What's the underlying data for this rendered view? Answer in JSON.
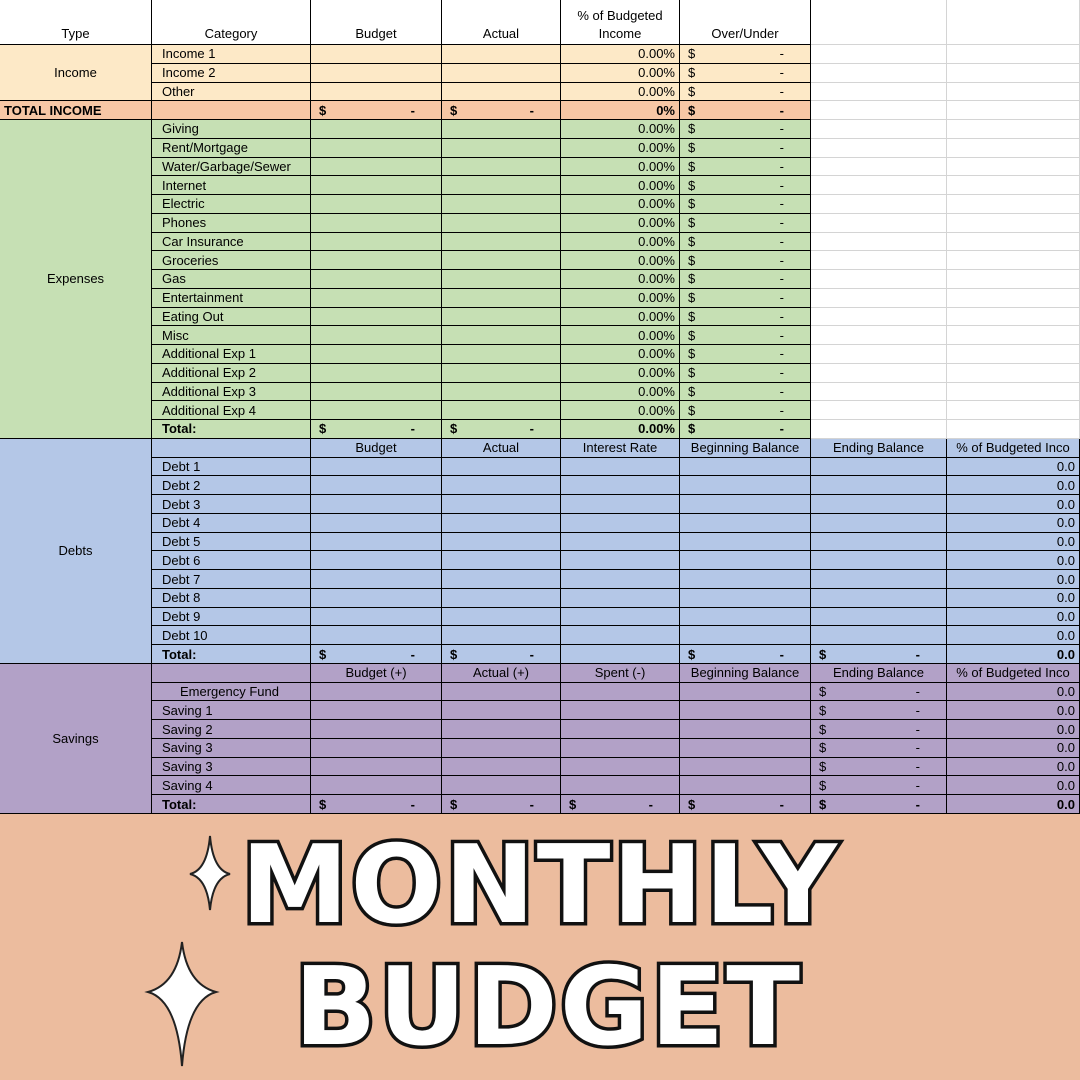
{
  "header": [
    "Type",
    "Category",
    "Budget",
    "Actual",
    "% of Budgeted Income",
    "Over/Under"
  ],
  "sections": [
    {
      "label": "Income",
      "color": "#fde9c7",
      "full_width": false,
      "rows": [
        {
          "kind": "data",
          "cells": [
            "Income 1",
            null,
            null,
            "0.00%",
            {
              "left": "$",
              "right": "-"
            },
            null,
            null
          ]
        },
        {
          "kind": "data",
          "cells": [
            "Income 2",
            null,
            null,
            "0.00%",
            {
              "left": "$",
              "right": "-"
            },
            null,
            null
          ]
        },
        {
          "kind": "data",
          "cells": [
            "Other",
            null,
            null,
            "0.00%",
            {
              "left": "$",
              "right": "-"
            },
            null,
            null
          ]
        }
      ]
    },
    {
      "label": "TOTAL INCOME",
      "color": "#f7c7a5",
      "full_width": false,
      "rows": [
        {
          "kind": "total",
          "cells": [
            null,
            {
              "left": "$",
              "right": "-"
            },
            {
              "left": "$",
              "right": "-"
            },
            "0%",
            {
              "left": "$",
              "right": "-"
            },
            null,
            null
          ]
        }
      ]
    },
    {
      "label": "Expenses",
      "color": "#c6e0b4",
      "full_width": false,
      "rows": [
        {
          "kind": "data",
          "cells": [
            "Giving",
            null,
            null,
            "0.00%",
            {
              "left": "$",
              "right": "-"
            },
            null,
            null
          ]
        },
        {
          "kind": "data",
          "cells": [
            "Rent/Mortgage",
            null,
            null,
            "0.00%",
            {
              "left": "$",
              "right": "-"
            },
            null,
            null
          ]
        },
        {
          "kind": "data",
          "cells": [
            "Water/Garbage/Sewer",
            null,
            null,
            "0.00%",
            {
              "left": "$",
              "right": "-"
            },
            null,
            null
          ]
        },
        {
          "kind": "data",
          "cells": [
            "Internet",
            null,
            null,
            "0.00%",
            {
              "left": "$",
              "right": "-"
            },
            null,
            null
          ]
        },
        {
          "kind": "data",
          "cells": [
            "Electric",
            null,
            null,
            "0.00%",
            {
              "left": "$",
              "right": "-"
            },
            null,
            null
          ]
        },
        {
          "kind": "data",
          "cells": [
            "Phones",
            null,
            null,
            "0.00%",
            {
              "left": "$",
              "right": "-"
            },
            null,
            null
          ]
        },
        {
          "kind": "data",
          "cells": [
            "Car Insurance",
            null,
            null,
            "0.00%",
            {
              "left": "$",
              "right": "-"
            },
            null,
            null
          ]
        },
        {
          "kind": "data",
          "cells": [
            "Groceries",
            null,
            null,
            "0.00%",
            {
              "left": "$",
              "right": "-"
            },
            null,
            null
          ]
        },
        {
          "kind": "data",
          "cells": [
            "Gas",
            null,
            null,
            "0.00%",
            {
              "left": "$",
              "right": "-"
            },
            null,
            null
          ]
        },
        {
          "kind": "data",
          "cells": [
            "Entertainment",
            null,
            null,
            "0.00%",
            {
              "left": "$",
              "right": "-"
            },
            null,
            null
          ]
        },
        {
          "kind": "data",
          "cells": [
            "Eating Out",
            null,
            null,
            "0.00%",
            {
              "left": "$",
              "right": "-"
            },
            null,
            null
          ]
        },
        {
          "kind": "data",
          "cells": [
            "Misc",
            null,
            null,
            "0.00%",
            {
              "left": "$",
              "right": "-"
            },
            null,
            null
          ]
        },
        {
          "kind": "data",
          "cells": [
            "Additional Exp 1",
            null,
            null,
            "0.00%",
            {
              "left": "$",
              "right": "-"
            },
            null,
            null
          ]
        },
        {
          "kind": "data",
          "cells": [
            "Additional Exp 2",
            null,
            null,
            "0.00%",
            {
              "left": "$",
              "right": "-"
            },
            null,
            null
          ]
        },
        {
          "kind": "data",
          "cells": [
            "Additional Exp 3",
            null,
            null,
            "0.00%",
            {
              "left": "$",
              "right": "-"
            },
            null,
            null
          ]
        },
        {
          "kind": "data",
          "cells": [
            "Additional Exp 4",
            null,
            null,
            "0.00%",
            {
              "left": "$",
              "right": "-"
            },
            null,
            null
          ]
        },
        {
          "kind": "total",
          "cells": [
            "Total:",
            {
              "left": "$",
              "right": "-"
            },
            {
              "left": "$",
              "right": "-"
            },
            "0.00%",
            {
              "left": "$",
              "right": "-"
            },
            null,
            null
          ]
        }
      ]
    },
    {
      "label": "Debts",
      "color": "#b4c7e7",
      "full_width": true,
      "rows": [
        {
          "kind": "header",
          "cells": [
            null,
            "Budget",
            "Actual",
            "Interest Rate",
            "Beginning Balance",
            "Ending Balance",
            "% of Budgeted Inco"
          ]
        },
        {
          "kind": "data",
          "cells": [
            "Debt 1",
            null,
            null,
            null,
            null,
            null,
            "0.0"
          ]
        },
        {
          "kind": "data",
          "cells": [
            "Debt 2",
            null,
            null,
            null,
            null,
            null,
            "0.0"
          ]
        },
        {
          "kind": "data",
          "cells": [
            "Debt 3",
            null,
            null,
            null,
            null,
            null,
            "0.0"
          ]
        },
        {
          "kind": "data",
          "cells": [
            "Debt 4",
            null,
            null,
            null,
            null,
            null,
            "0.0"
          ]
        },
        {
          "kind": "data",
          "cells": [
            "Debt 5",
            null,
            null,
            null,
            null,
            null,
            "0.0"
          ]
        },
        {
          "kind": "data",
          "cells": [
            "Debt 6",
            null,
            null,
            null,
            null,
            null,
            "0.0"
          ]
        },
        {
          "kind": "data",
          "cells": [
            "Debt 7",
            null,
            null,
            null,
            null,
            null,
            "0.0"
          ]
        },
        {
          "kind": "data",
          "cells": [
            "Debt 8",
            null,
            null,
            null,
            null,
            null,
            "0.0"
          ]
        },
        {
          "kind": "data",
          "cells": [
            "Debt 9",
            null,
            null,
            null,
            null,
            null,
            "0.0"
          ]
        },
        {
          "kind": "data",
          "cells": [
            "Debt 10",
            null,
            null,
            null,
            null,
            null,
            "0.0"
          ]
        },
        {
          "kind": "total",
          "cells": [
            "Total:",
            {
              "left": "$",
              "right": "-"
            },
            {
              "left": "$",
              "right": "-"
            },
            null,
            {
              "left": "$",
              "right": "-"
            },
            {
              "left": "$",
              "right": "-"
            },
            "0.0"
          ]
        }
      ]
    },
    {
      "label": "Savings",
      "color": "#b2a1c7",
      "full_width": true,
      "rows": [
        {
          "kind": "header",
          "cells": [
            null,
            "Budget (+)",
            "Actual (+)",
            "Spent (-)",
            "Beginning Balance",
            "Ending Balance",
            "% of Budgeted Inco"
          ]
        },
        {
          "kind": "data",
          "cells": [
            "Emergency Fund",
            null,
            null,
            null,
            null,
            {
              "left": "$",
              "right": "-"
            },
            "0.0"
          ]
        },
        {
          "kind": "data",
          "cells": [
            "Saving 1",
            null,
            null,
            null,
            null,
            {
              "left": "$",
              "right": "-"
            },
            "0.0"
          ]
        },
        {
          "kind": "data",
          "cells": [
            "Saving 2",
            null,
            null,
            null,
            null,
            {
              "left": "$",
              "right": "-"
            },
            "0.0"
          ]
        },
        {
          "kind": "data",
          "cells": [
            "Saving 3",
            null,
            null,
            null,
            null,
            {
              "left": "$",
              "right": "-"
            },
            "0.0"
          ]
        },
        {
          "kind": "data",
          "cells": [
            "Saving 3",
            null,
            null,
            null,
            null,
            {
              "left": "$",
              "right": "-"
            },
            "0.0"
          ]
        },
        {
          "kind": "data",
          "cells": [
            "Saving 4",
            null,
            null,
            null,
            null,
            {
              "left": "$",
              "right": "-"
            },
            "0.0"
          ]
        },
        {
          "kind": "total",
          "cells": [
            "Total:",
            {
              "left": "$",
              "right": "-"
            },
            {
              "left": "$",
              "right": "-"
            },
            {
              "left": "$",
              "right": "-"
            },
            {
              "left": "$",
              "right": "-"
            },
            {
              "left": "$",
              "right": "-"
            },
            "0.0"
          ]
        }
      ]
    }
  ],
  "banner": {
    "line1": "MONTHLY",
    "line2": "BUDGET",
    "color": "#ecbc9e"
  }
}
